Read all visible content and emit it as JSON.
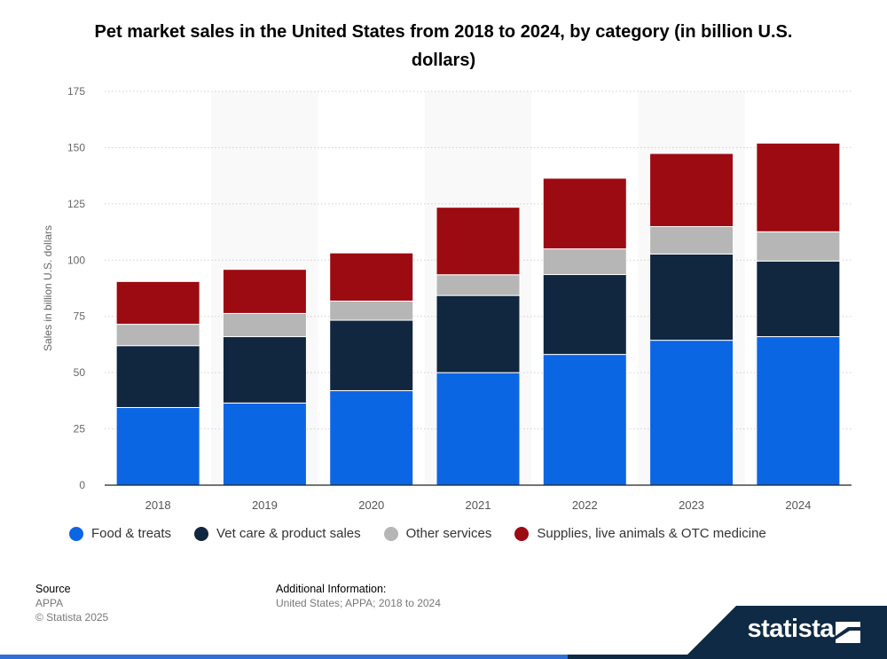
{
  "chart_data": {
    "type": "bar",
    "stacked": true,
    "title": "Pet market sales in the United States from 2018 to 2024, by category (in billion U.S. dollars)",
    "xlabel": "",
    "ylabel": "Sales in billion U.S. dollars",
    "ylim": [
      0,
      175
    ],
    "yticks": [
      0,
      25,
      50,
      75,
      100,
      125,
      150,
      175
    ],
    "grid": true,
    "legend_position": "bottom",
    "categories": [
      "2018",
      "2019",
      "2020",
      "2021",
      "2022",
      "2023",
      "2024"
    ],
    "series": [
      {
        "name": "Food & treats",
        "color": "#0b66e4",
        "values": [
          34.5,
          36.5,
          42.0,
          50.0,
          58.1,
          64.4,
          66.0
        ]
      },
      {
        "name": "Vet care & product sales",
        "color": "#11263f",
        "values": [
          27.5,
          29.5,
          31.3,
          34.3,
          35.5,
          38.3,
          33.6
        ]
      },
      {
        "name": "Other services",
        "color": "#b6b6b6",
        "values": [
          9.5,
          10.3,
          8.5,
          9.2,
          11.4,
          12.2,
          13.0
        ]
      },
      {
        "name": "Supplies, live animals & OTC medicine",
        "color": "#9c0b12",
        "values": [
          19.0,
          19.6,
          21.4,
          30.0,
          31.4,
          32.5,
          39.4
        ]
      }
    ]
  },
  "footer": {
    "source_heading": "Source",
    "source_lines": [
      "APPA",
      "© Statista 2025"
    ],
    "additional_heading": "Additional Information:",
    "additional_text": "United States; APPA; 2018 to 2024",
    "brand": "statista"
  }
}
